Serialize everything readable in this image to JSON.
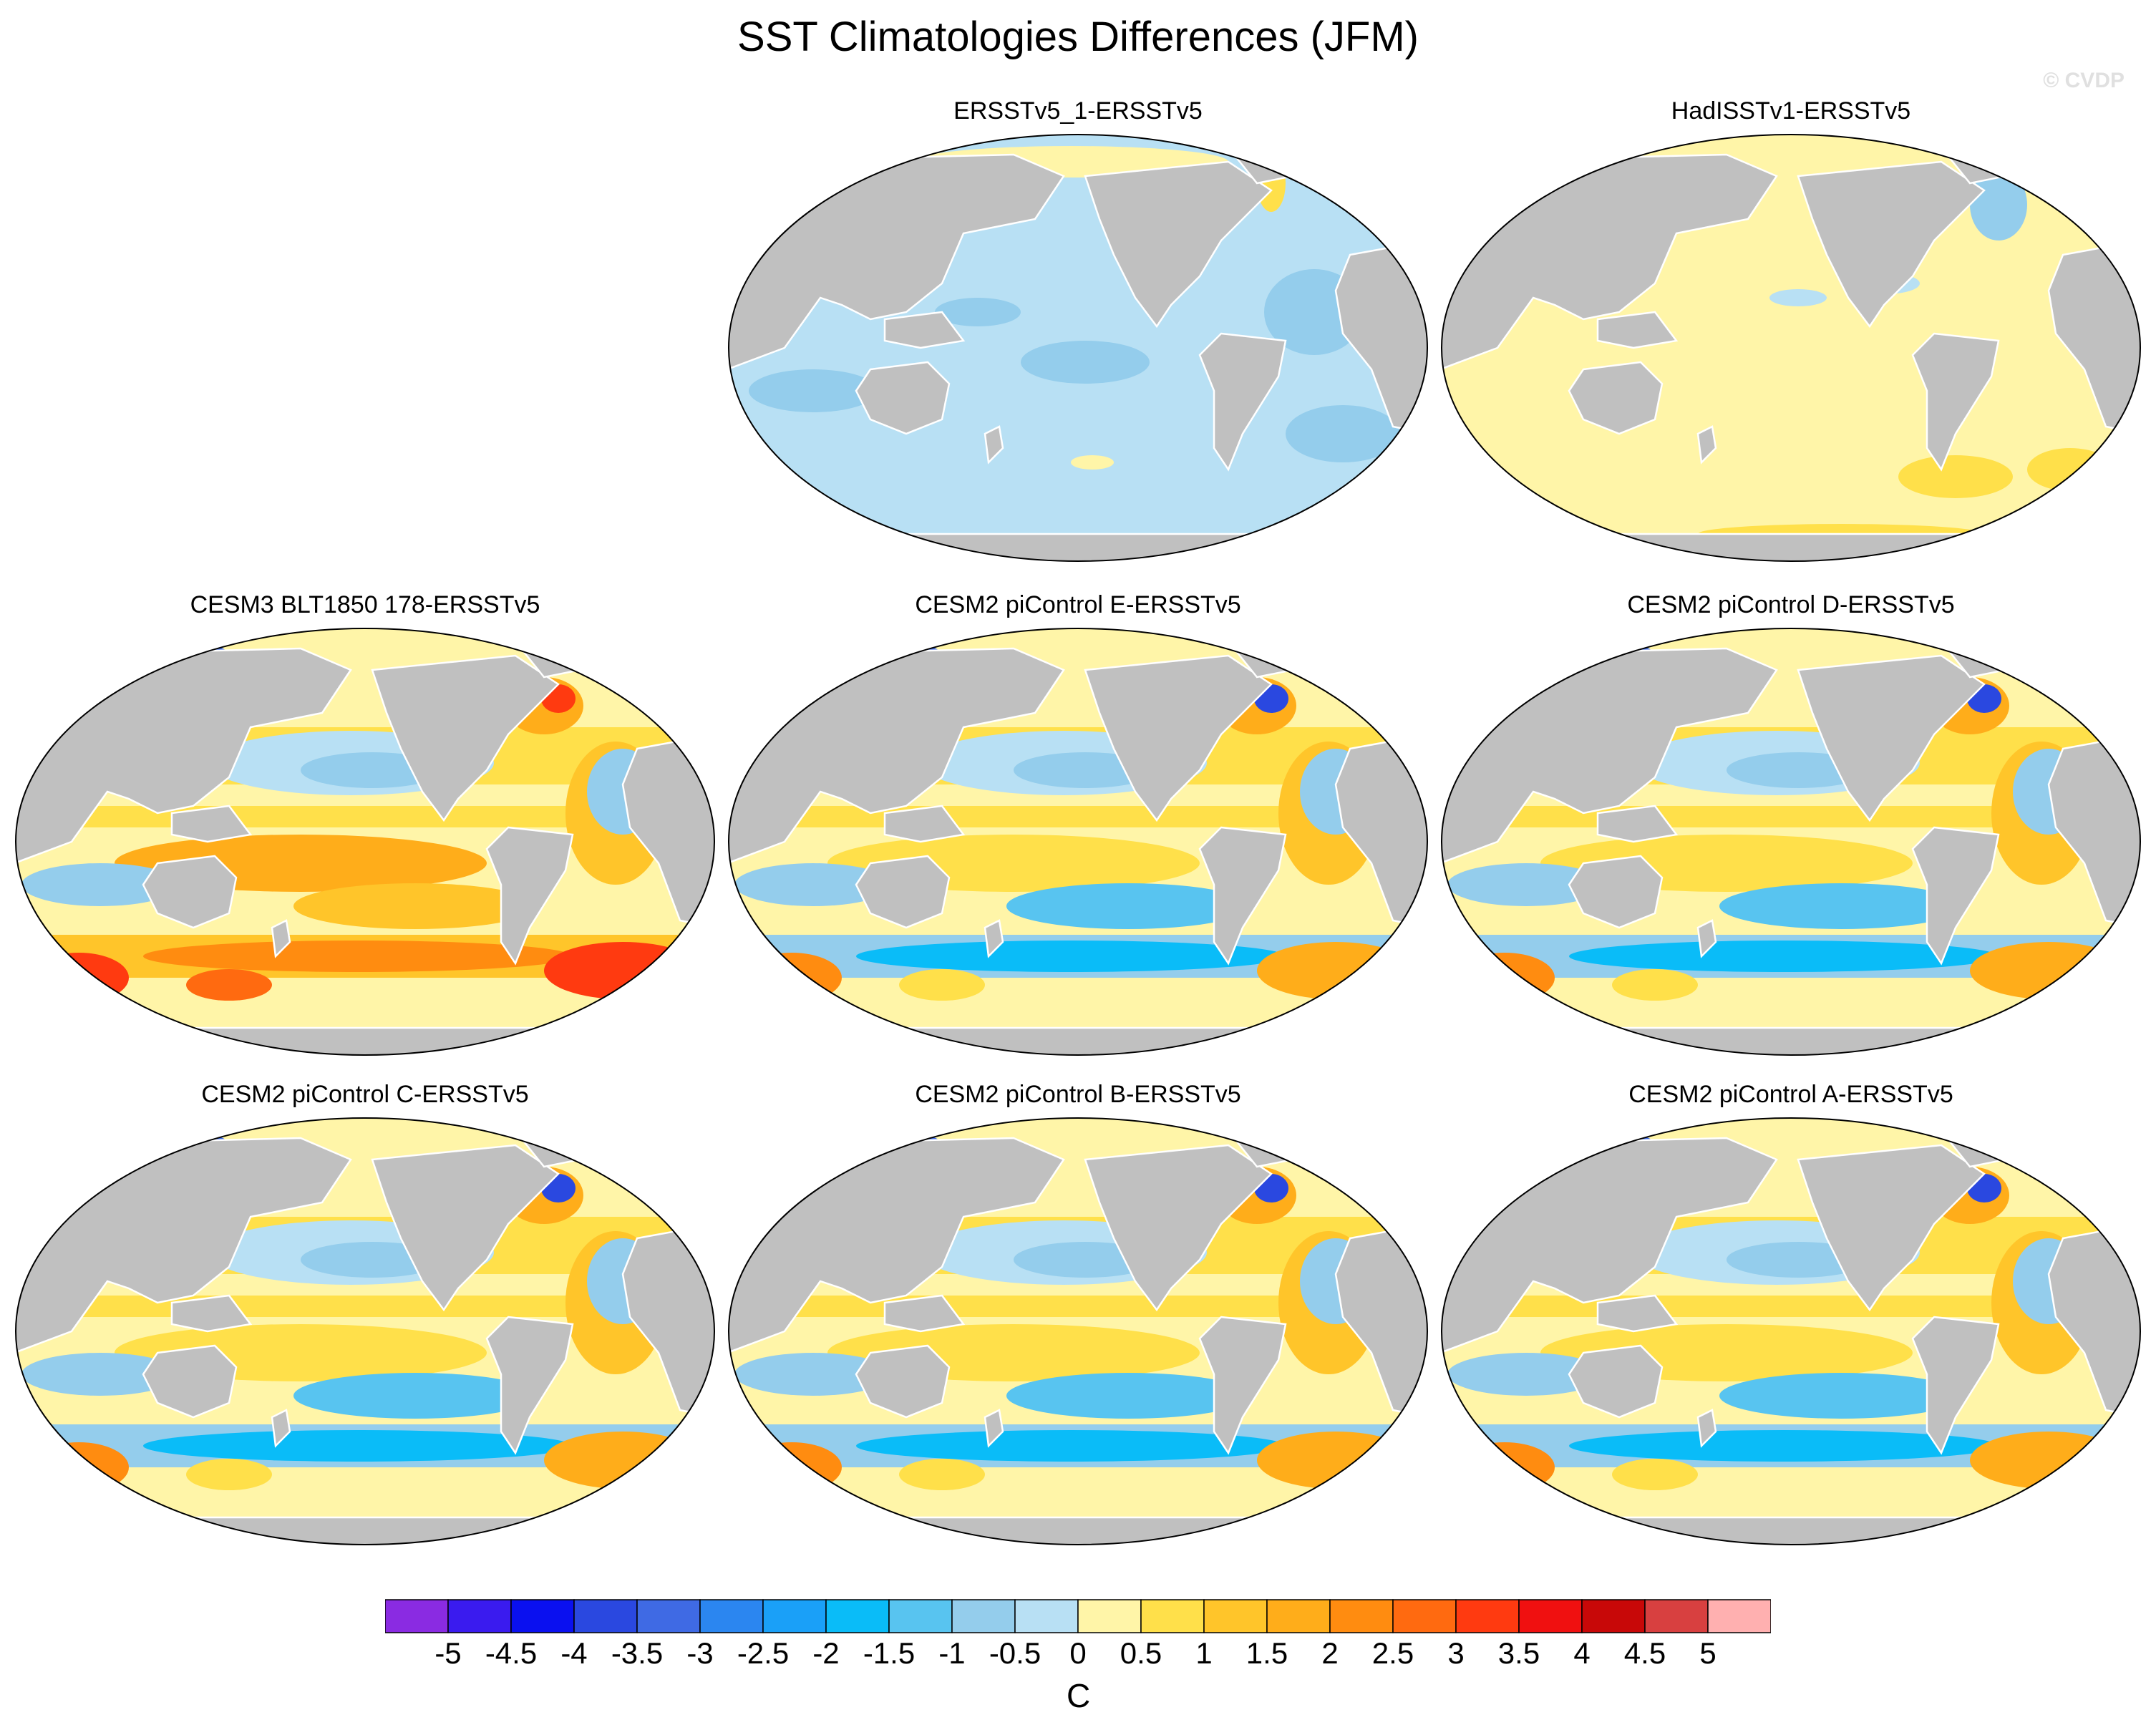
{
  "title": "SST Climatologies Differences (JFM)",
  "watermark": "© CVDP",
  "colors": {
    "land": "#c0c0c0",
    "ocean_zero": "#fff5a8",
    "levels": [
      "#8a2be2",
      "#3a1bef",
      "#0a10f0",
      "#2a48e0",
      "#3f6ae4",
      "#2b86f0",
      "#1aa0f8",
      "#0abcf8",
      "#58c4f0",
      "#94cdec",
      "#b8e0f4",
      "#fff5a8",
      "#ffe04a",
      "#ffc52a",
      "#ffad1a",
      "#ff8c10",
      "#ff6a10",
      "#ff3a10",
      "#f01010",
      "#c80808",
      "#d84040",
      "#ffb0b0"
    ]
  },
  "panels": [
    {
      "id": "p1",
      "title": "ERSSTv5_1-ERSSTv5",
      "pattern": "cool-uniform"
    },
    {
      "id": "p2",
      "title": "HadISSTv1-ERSSTv5",
      "pattern": "warm-uniform"
    },
    {
      "id": "p3",
      "title": "CESM3 BLT1850 178-ERSSTv5",
      "pattern": "model-warm-south"
    },
    {
      "id": "p4",
      "title": "CESM2 piControl E-ERSSTv5",
      "pattern": "model"
    },
    {
      "id": "p5",
      "title": "CESM2 piControl D-ERSSTv5",
      "pattern": "model"
    },
    {
      "id": "p6",
      "title": "CESM2 piControl C-ERSSTv5",
      "pattern": "model"
    },
    {
      "id": "p7",
      "title": "CESM2 piControl B-ERSSTv5",
      "pattern": "model"
    },
    {
      "id": "p8",
      "title": "CESM2 piControl A-ERSSTv5",
      "pattern": "model"
    }
  ],
  "colorbar": {
    "labels": [
      "-5",
      "-4.5",
      "-4",
      "-3.5",
      "-3",
      "-2.5",
      "-2",
      "-1.5",
      "-1",
      "-0.5",
      "0",
      "0.5",
      "1",
      "1.5",
      "2",
      "2.5",
      "3",
      "3.5",
      "4",
      "4.5",
      "5"
    ],
    "units": "C"
  }
}
